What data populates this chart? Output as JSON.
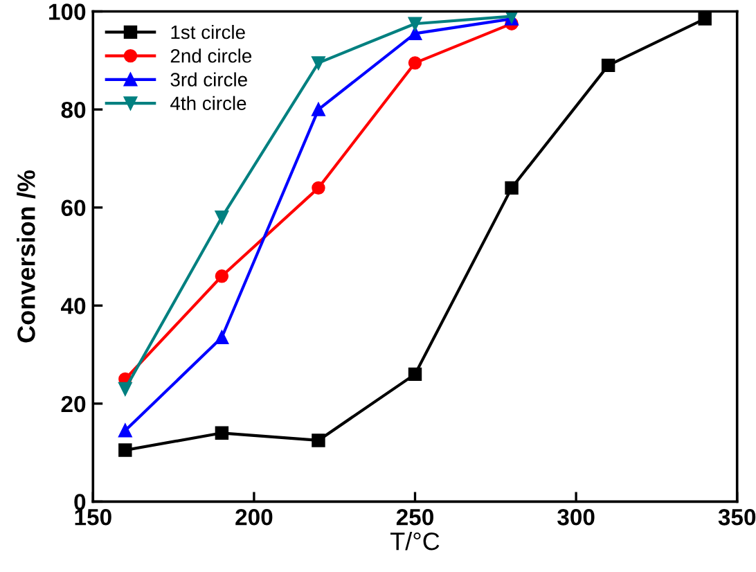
{
  "chart_data": {
    "type": "line",
    "xlabel": "T/°C",
    "ylabel": "Conversion /%",
    "xlim": [
      150,
      350
    ],
    "ylim": [
      0,
      100
    ],
    "xticks": [
      150,
      200,
      250,
      300,
      350
    ],
    "yticks": [
      0,
      20,
      40,
      60,
      80,
      100
    ],
    "grid": false,
    "legend": "top left",
    "line_style": "solid",
    "series": [
      {
        "name": "1st circle",
        "color": "#000000",
        "marker": "square",
        "x": [
          160,
          190,
          220,
          250,
          280,
          310,
          340
        ],
        "values": [
          10.5,
          14,
          12.5,
          26,
          64,
          89,
          98.5
        ]
      },
      {
        "name": "2nd circle",
        "color": "#ff0000",
        "marker": "circle",
        "x": [
          160,
          190,
          220,
          250,
          280
        ],
        "values": [
          25,
          46,
          64,
          89.5,
          97.5
        ]
      },
      {
        "name": "3rd circle",
        "color": "#0000ff",
        "marker": "triangle",
        "x": [
          160,
          190,
          220,
          250,
          280
        ],
        "values": [
          14.5,
          33.5,
          80,
          95.5,
          98.5
        ]
      },
      {
        "name": "4th circle",
        "color": "#008080",
        "marker": "triangle_down",
        "x": [
          160,
          190,
          220,
          250,
          280
        ],
        "values": [
          23,
          58,
          89.5,
          97.5,
          99
        ]
      }
    ]
  }
}
